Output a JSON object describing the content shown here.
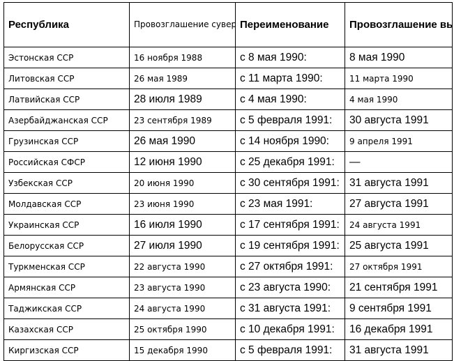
{
  "table": {
    "headers": [
      {
        "text": "Республика",
        "style": "bold"
      },
      {
        "text": "Провозглашение суверенитета",
        "style": "normal"
      },
      {
        "text": "Переименование",
        "style": "bold"
      },
      {
        "text": "Провозглашение выхода из состава СССР",
        "style": "bold-wrap"
      }
    ],
    "rows": [
      {
        "republic": "Эстонская ССР",
        "sovereignty": "16 ноября 1988",
        "renaming": "с 8 мая 1990:",
        "exit": "8 мая 1990",
        "styles": [
          "sm",
          "sm",
          "lg",
          "lg"
        ]
      },
      {
        "republic": "Литовская ССР",
        "sovereignty": "26 мая 1989",
        "renaming": "с 11 марта 1990:",
        "exit": "11 марта 1990",
        "styles": [
          "sm",
          "sm",
          "lg",
          "sm"
        ]
      },
      {
        "republic": "Латвийская ССР",
        "sovereignty": "28 июля 1989",
        "renaming": "с 4 мая 1990:",
        "exit": "4 мая 1990",
        "styles": [
          "sm",
          "lg",
          "lg",
          "sm"
        ]
      },
      {
        "republic": "Азербайджанская ССР",
        "sovereignty": "23 сентября 1989",
        "renaming": "с 5 февраля 1991:",
        "exit": "30 августа 1991",
        "styles": [
          "sm",
          "sm",
          "lg",
          "lg"
        ]
      },
      {
        "republic": "Грузинская ССР",
        "sovereignty": "26 мая 1990",
        "renaming": "с 14 ноября 1990:",
        "exit": "9 апреля 1991",
        "styles": [
          "sm",
          "lg",
          "lg",
          "sm"
        ]
      },
      {
        "republic": "Российская СФСР",
        "sovereignty": "12 июня 1990",
        "renaming": "с 25 декабря 1991:",
        "exit": "—",
        "styles": [
          "sm",
          "lg",
          "lg",
          "lg"
        ]
      },
      {
        "republic": "Узбекская ССР",
        "sovereignty": "20 июня 1990",
        "renaming": "с 30 сентября 1991:",
        "exit": "31 августа 1991",
        "styles": [
          "sm",
          "sm",
          "lg",
          "lg"
        ]
      },
      {
        "republic": "Молдавская ССР",
        "sovereignty": "23 июня 1990",
        "renaming": "с 23 мая 1991:",
        "exit": "27 августа 1991",
        "styles": [
          "sm",
          "sm",
          "lg",
          "lg"
        ]
      },
      {
        "republic": "Украинская ССР",
        "sovereignty": "16 июля 1990",
        "renaming": "с 17 сентября 1991:",
        "exit": "24 августа 1991",
        "styles": [
          "sm",
          "lg",
          "lg",
          "sm"
        ]
      },
      {
        "republic": "Белорусская ССР",
        "sovereignty": "27 июля 1990",
        "renaming": "с 19 сентября 1991:",
        "exit": "25 августа 1991",
        "styles": [
          "sm",
          "lg",
          "lg",
          "lg"
        ]
      },
      {
        "republic": "Туркменская ССР",
        "sovereignty": "22 августа 1990",
        "renaming": "с 27 октября 1991:",
        "exit": "27 октября 1991",
        "styles": [
          "sm",
          "sm",
          "lg",
          "sm"
        ]
      },
      {
        "republic": "Армянская ССР",
        "sovereignty": "23 августа 1990",
        "renaming": "с 23 августа 1990:",
        "exit": "21 сентября 1991",
        "styles": [
          "sm",
          "sm",
          "lg",
          "lg"
        ]
      },
      {
        "republic": "Таджикская ССР",
        "sovereignty": "24 августа 1990",
        "renaming": "с 31 августа 1991:",
        "exit": "9 сентября 1991",
        "styles": [
          "sm",
          "sm",
          "lg",
          "lg"
        ]
      },
      {
        "republic": "Казахская ССР",
        "sovereignty": "25 октября 1990",
        "renaming": "с 10 декабря 1991:",
        "exit": "16 декабря 1991",
        "styles": [
          "sm",
          "sm",
          "lg",
          "lg"
        ]
      },
      {
        "republic": "Киргизская ССР",
        "sovereignty": "15 декабря 1990",
        "renaming": "с 5 февраля 1991:",
        "exit": "31 августа 1991",
        "styles": [
          "sm",
          "sm",
          "lg",
          "lg"
        ]
      }
    ]
  }
}
